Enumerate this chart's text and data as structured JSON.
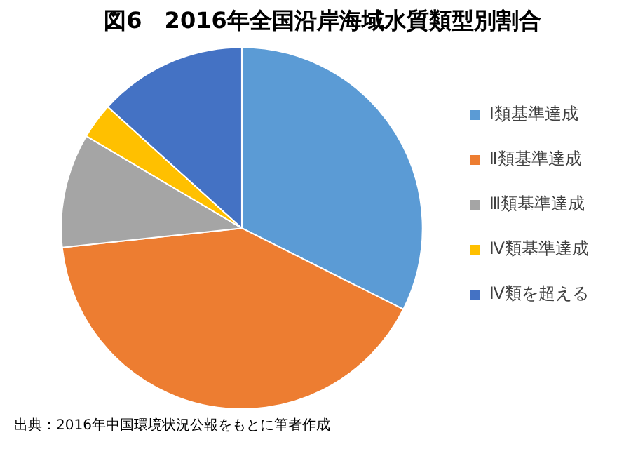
{
  "chart_data": {
    "type": "pie",
    "title": "図6　2016年全国沿岸海域水質類型別割合",
    "categories": [
      "Ⅰ類基準達成",
      "Ⅱ類基準達成",
      "Ⅲ類基準達成",
      "Ⅳ類基準達成",
      "Ⅳ類を超える"
    ],
    "values": [
      32.4,
      40.9,
      10.2,
      3.2,
      13.3
    ],
    "colors": [
      "#5b9bd5",
      "#ed7d31",
      "#a5a5a5",
      "#ffc000",
      "#4472c4"
    ],
    "legend": "right",
    "annotations": [
      "出典：2016年中国環境状況公報をもとに筆者作成"
    ]
  }
}
